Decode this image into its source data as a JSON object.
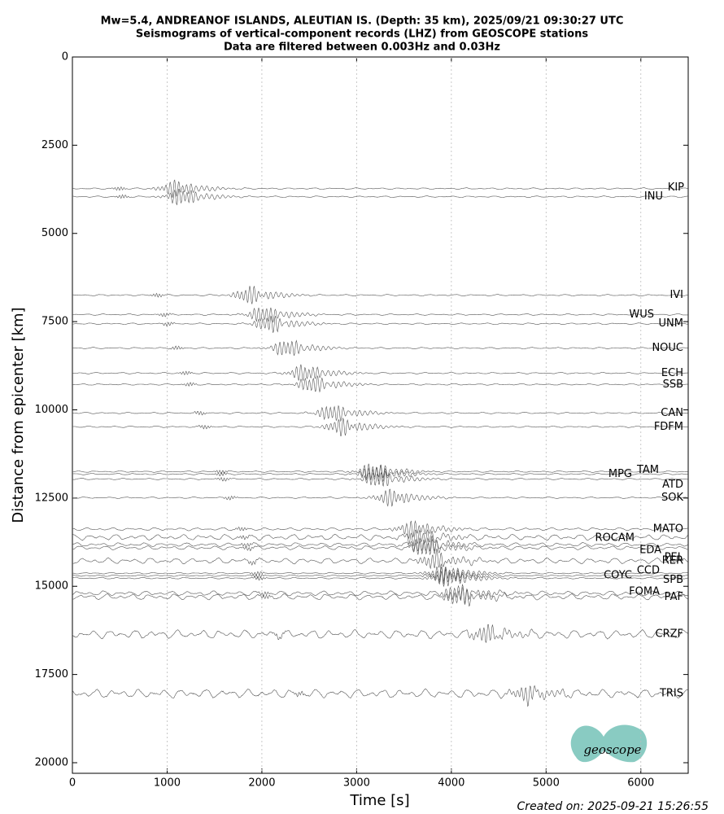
{
  "chart_data": {
    "type": "seismogram",
    "title": "Mw=5.4, ANDREANOF ISLANDS, ALEUTIAN IS. (Depth: 35 km), 2025/09/21 09:30:27 UTC",
    "subtitle": "Seismograms of vertical-component records (LHZ) from GEOSCOPE stations",
    "subtitle2": "Data are filtered between 0.003Hz and 0.03Hz",
    "x_label": "Time [s]",
    "y_label": "Distance from epicenter [km]",
    "xlim": [
      0,
      6500
    ],
    "xticks": [
      0,
      1000,
      2000,
      3000,
      4000,
      5000,
      6000
    ],
    "ylim": [
      20300,
      0
    ],
    "yticks": [
      0,
      2500,
      5000,
      7500,
      10000,
      12500,
      15000,
      17500,
      20000
    ],
    "grid": true,
    "color": "#555555",
    "stations": [
      {
        "name": "KIP",
        "distance_km": 3730
      },
      {
        "name": "INU",
        "distance_km": 3960
      },
      {
        "name": "IVI",
        "distance_km": 6750
      },
      {
        "name": "WUS",
        "distance_km": 7300
      },
      {
        "name": "UNM",
        "distance_km": 7560
      },
      {
        "name": "NOUC",
        "distance_km": 8250
      },
      {
        "name": "ECH",
        "distance_km": 8960
      },
      {
        "name": "SSB",
        "distance_km": 9280
      },
      {
        "name": "CAN",
        "distance_km": 10090
      },
      {
        "name": "FDFM",
        "distance_km": 10480
      },
      {
        "name": "MPG",
        "distance_km": 11820
      },
      {
        "name": "TAM",
        "distance_km": 11750
      },
      {
        "name": "ATD",
        "distance_km": 11960
      },
      {
        "name": "SOK",
        "distance_km": 12490
      },
      {
        "name": "MATO",
        "distance_km": 13380
      },
      {
        "name": "ROCAM",
        "distance_km": 13610
      },
      {
        "name": "EDA",
        "distance_km": 13820
      },
      {
        "name": "PEL",
        "distance_km": 13910
      },
      {
        "name": "RER",
        "distance_km": 14280
      },
      {
        "name": "CCD",
        "distance_km": 14630
      },
      {
        "name": "COYC",
        "distance_km": 14700
      },
      {
        "name": "SPB",
        "distance_km": 14770
      },
      {
        "name": "FOMA",
        "distance_km": 15200
      },
      {
        "name": "PAF",
        "distance_km": 15300
      },
      {
        "name": "CRZF",
        "distance_km": 16360
      },
      {
        "name": "TRIS",
        "distance_km": 18040
      }
    ],
    "logo": "geoscope",
    "footer": "Created on: 2025-09-21 15:26:55"
  }
}
